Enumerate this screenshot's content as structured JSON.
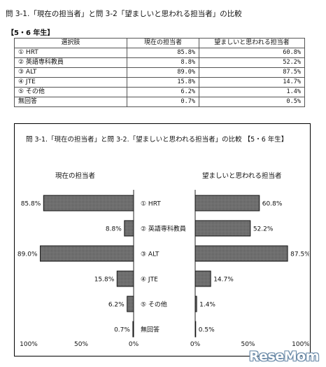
{
  "page": {
    "title": "問 3-1.「現在の担当者」と問 3-2「望ましいと思われる担当者」の比較",
    "grade": "【5・6 年生】"
  },
  "table": {
    "headers": [
      "選択肢",
      "現在の担当者",
      "望ましいと思われる担当者"
    ],
    "rows": [
      [
        "① HRT",
        "85.8%",
        "60.8%"
      ],
      [
        "② 英語専科教員",
        "8.8%",
        "52.2%"
      ],
      [
        "③ ALT",
        "89.0%",
        "87.5%"
      ],
      [
        "④ JTE",
        "15.8%",
        "14.7%"
      ],
      [
        "⑤ その他",
        "6.2%",
        "1.4%"
      ],
      [
        "無回答",
        "0.7%",
        "0.5%"
      ]
    ]
  },
  "chart_title": "問 3-1.「現在の担当者」と問 3-2.「望ましいと思われる担当者」の比較 【5・6 年生】",
  "watermark": "ReseMom",
  "chart_data": {
    "type": "bar",
    "orientation": "horizontal-butterfly",
    "categories": [
      "① HRT",
      "② 英語専科教員",
      "③ ALT",
      "④ JTE",
      "⑤ その他",
      "無回答"
    ],
    "series": [
      {
        "name": "現在の担当者",
        "values": [
          85.8,
          8.8,
          89.0,
          15.8,
          6.2,
          0.7
        ]
      },
      {
        "name": "望ましいと思われる担当者",
        "values": [
          60.8,
          52.2,
          87.5,
          14.7,
          1.4,
          0.5
        ]
      }
    ],
    "value_labels_left": [
      "85.8%",
      "8.8%",
      "89.0%",
      "15.8%",
      "6.2%",
      "0.7%"
    ],
    "value_labels_right": [
      "60.8%",
      "52.2%",
      "87.5%",
      "14.7%",
      "1.4%",
      "0.5%"
    ],
    "left_ticks": [
      "100%",
      "50%",
      "0%"
    ],
    "right_ticks": [
      "0%",
      "50%",
      "100%"
    ],
    "xlim": [
      0,
      100
    ],
    "left_axis_reversed": true,
    "bar_fill": "#7a7a7a",
    "bar_stroke": "#111111",
    "grid": false
  }
}
